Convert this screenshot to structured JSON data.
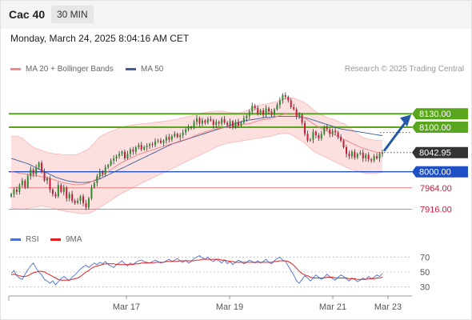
{
  "header": {
    "instrument": "Cac 40",
    "timeframe": "30 MIN"
  },
  "datetime": "Monday, March 24, 2025 8:04:16 AM CET",
  "legend": {
    "items": [
      {
        "label": "MA 20 + Bollinger Bands",
        "color": "#f28b8b"
      },
      {
        "label": "MA 50",
        "color": "#3a5f9a"
      }
    ],
    "credit": "Research © 2025 Trading Central"
  },
  "rsi_legend": {
    "items": [
      {
        "label": "RSI",
        "color": "#4a6fd0"
      },
      {
        "label": "9MA",
        "color": "#e02020"
      }
    ]
  },
  "colors": {
    "up": "#2e8b2e",
    "down": "#c41e3a",
    "resistance": "#5aa51e",
    "pivot": "#1f4fc4",
    "support": "#e08080",
    "arrow": "#2559a8",
    "price_label": "#333333",
    "band_fill": "#fcdcdc",
    "ma20": "#f07f7f",
    "ma50": "#3a5f9a",
    "rsi": "#4a6fd0",
    "rsi_ma": "#e02020"
  },
  "chart_data": {
    "type": "candlestick",
    "ylim": [
      7890,
      8195
    ],
    "x_ticks": [
      "Mar 17",
      "Mar 19",
      "Mar 21",
      "Mar 23"
    ],
    "current_price": "8042.95",
    "levels": [
      {
        "label": "8130.00",
        "value": 8130,
        "kind": "resistance"
      },
      {
        "label": "8100.00",
        "value": 8100,
        "kind": "resistance"
      },
      {
        "label": "8000.00",
        "value": 8000,
        "kind": "pivot"
      },
      {
        "label": "7964.00",
        "value": 7964,
        "kind": "support"
      },
      {
        "label": "7916.00",
        "value": 7916,
        "kind": "support"
      }
    ],
    "forecast_target": 8130,
    "close": [
      7950,
      7960,
      7955,
      7970,
      7980,
      7965,
      7990,
      8005,
      7995,
      8010,
      8020,
      8000,
      7980,
      7985,
      7960,
      7950,
      7945,
      7970,
      7955,
      7965,
      7940,
      7950,
      7935,
      7930,
      7935,
      7945,
      7930,
      7920,
      7940,
      7965,
      7975,
      7990,
      8000,
      7995,
      8010,
      8015,
      8025,
      8030,
      8035,
      8040,
      8045,
      8030,
      8040,
      8050,
      8045,
      8055,
      8060,
      8050,
      8055,
      8058,
      8062,
      8060,
      8068,
      8070,
      8065,
      8070,
      8078,
      8072,
      8080,
      8085,
      8078,
      8082,
      8088,
      8095,
      8100,
      8098,
      8112,
      8120,
      8108,
      8115,
      8110,
      8118,
      8115,
      8105,
      8112,
      8108,
      8118,
      8110,
      8105,
      8113,
      8102,
      8112,
      8104,
      8110,
      8120,
      8125,
      8135,
      8148,
      8143,
      8130,
      8138,
      8128,
      8142,
      8135,
      8128,
      8140,
      8150,
      8160,
      8172,
      8168,
      8160,
      8145,
      8140,
      8125,
      8128,
      8110,
      8085,
      8070,
      8072,
      8090,
      8082,
      8075,
      8085,
      8100,
      8095,
      8085,
      8092,
      8088,
      8078,
      8070,
      8055,
      8040,
      8035,
      8045,
      8032,
      8040,
      8043,
      8030,
      8038,
      8028,
      8025,
      8035,
      8030,
      8040,
      8043
    ],
    "upper_band": [
      8080,
      8080,
      8080,
      8078,
      8075,
      8070,
      8065,
      8060,
      8055,
      8052,
      8050,
      8048,
      8045,
      8044,
      8042,
      8041,
      8040,
      8040,
      8039,
      8038,
      8038,
      8038,
      8038,
      8038,
      8040,
      8042,
      8045,
      8048,
      8052,
      8058,
      8065,
      8072,
      8078,
      8082,
      8085,
      8088,
      8090,
      8093,
      8095,
      8098,
      8100,
      8102,
      8103,
      8104,
      8105,
      8106,
      8107,
      8107,
      8108,
      8108,
      8109,
      8110,
      8111,
      8112,
      8112,
      8113,
      8114,
      8115,
      8116,
      8117,
      8118,
      8120,
      8121,
      8122,
      8124,
      8125,
      8128,
      8130,
      8131,
      8132,
      8133,
      8134,
      8135,
      8135,
      8136,
      8136,
      8136,
      8135,
      8134,
      8133,
      8132,
      8132,
      8132,
      8133,
      8135,
      8137,
      8140,
      8143,
      8146,
      8148,
      8150,
      8151,
      8152,
      8153,
      8155,
      8156,
      8158,
      8160,
      8163,
      8165,
      8166,
      8166,
      8165,
      8163,
      8160,
      8158,
      8155,
      8150,
      8145,
      8140,
      8135,
      8131,
      8128,
      8125,
      8122,
      8120,
      8118,
      8116,
      8113,
      8110,
      8108,
      8105,
      8100,
      8095,
      8090,
      8085,
      8080,
      8077,
      8075,
      8073,
      8072,
      8071,
      8070,
      8070,
      8070
    ],
    "lower_band": [
      7920,
      7918,
      7917,
      7916,
      7916,
      7917,
      7918,
      7919,
      7920,
      7921,
      7922,
      7923,
      7922,
      7921,
      7920,
      7918,
      7917,
      7915,
      7913,
      7912,
      7911,
      7910,
      7909,
      7908,
      7907,
      7906,
      7906,
      7906,
      7907,
      7909,
      7912,
      7916,
      7920,
      7924,
      7928,
      7932,
      7936,
      7940,
      7944,
      7948,
      7952,
      7955,
      7958,
      7961,
      7965,
      7968,
      7971,
      7974,
      7977,
      7980,
      7983,
      7986,
      7989,
      7992,
      7995,
      7998,
      8001,
      8004,
      8007,
      8010,
      8013,
      8016,
      8019,
      8022,
      8025,
      8028,
      8031,
      8034,
      8037,
      8040,
      8043,
      8046,
      8049,
      8052,
      8055,
      8058,
      8060,
      8062,
      8064,
      8065,
      8066,
      8067,
      8068,
      8069,
      8070,
      8071,
      8072,
      8073,
      8074,
      8075,
      8076,
      8077,
      8078,
      8079,
      8080,
      8082,
      8084,
      8085,
      8086,
      8086,
      8085,
      8083,
      8080,
      8076,
      8072,
      8068,
      8064,
      8058,
      8052,
      8047,
      8043,
      8040,
      8037,
      8034,
      8031,
      8028,
      8025,
      8022,
      8019,
      8016,
      8013,
      8010,
      8007,
      8005,
      8003,
      8001,
      7999,
      7998,
      7997,
      7996,
      7996,
      7996,
      7997,
      7998,
      7999
    ],
    "ma20": [
      8000,
      7999,
      7998,
      7997,
      7996,
      7995,
      7994,
      7993,
      7992,
      7991,
      7990,
      7989,
      7988,
      7987,
      7985,
      7983,
      7981,
      7979,
      7977,
      7975,
      7974,
      7973,
      7972,
      7971,
      7971,
      7971,
      7972,
      7973,
      7975,
      7978,
      7981,
      7985,
      7989,
      7993,
      7997,
      8001,
      8005,
      8009,
      8013,
      8017,
      8021,
      8024,
      8027,
      8030,
      8033,
      8036,
      8039,
      8041,
      8043,
      8045,
      8047,
      8049,
      8051,
      8053,
      8055,
      8057,
      8059,
      8061,
      8063,
      8065,
      8067,
      8069,
      8071,
      8073,
      8075,
      8077,
      8080,
      8083,
      8085,
      8087,
      8089,
      8091,
      8093,
      8095,
      8096,
      8097,
      8098,
      8099,
      8100,
      8101,
      8102,
      8103,
      8104,
      8105,
      8106,
      8107,
      8108,
      8110,
      8112,
      8114,
      8116,
      8117,
      8118,
      8119,
      8120,
      8122,
      8124,
      8126,
      8128,
      8130,
      8131,
      8131,
      8130,
      8128,
      8126,
      8123,
      8120,
      8116,
      8112,
      8108,
      8104,
      8100,
      8097,
      8094,
      8091,
      8088,
      8085,
      8082,
      8079,
      8076,
      8073,
      8070,
      8067,
      8064,
      8061,
      8058,
      8055,
      8053,
      8051,
      8049,
      8047,
      8045,
      8044,
      8043,
      8042
    ],
    "ma50": [
      8030,
      8028,
      8026,
      8024,
      8022,
      8020,
      8018,
      8015,
      8012,
      8009,
      8006,
      8003,
      8000,
      7997,
      7994,
      7991,
      7988,
      7986,
      7984,
      7982,
      7980,
      7979,
      7978,
      7977,
      7976,
      7976,
      7976,
      7976,
      7977,
      7978,
      7980,
      7982,
      7984,
      7987,
      7990,
      7993,
      7996,
      7999,
      8002,
      8005,
      8008,
      8011,
      8014,
      8017,
      8020,
      8023,
      8026,
      8029,
      8032,
      8035,
      8038,
      8041,
      8044,
      8047,
      8050,
      8053,
      8056,
      8059,
      8062,
      8064,
      8066,
      8068,
      8070,
      8072,
      8074,
      8076,
      8078,
      8080,
      8082,
      8084,
      8086,
      8088,
      8090,
      8092,
      8094,
      8096,
      8098,
      8100,
      8102,
      8104,
      8106,
      8108,
      8110,
      8112,
      8114,
      8115,
      8116,
      8117,
      8118,
      8119,
      8120,
      8121,
      8122,
      8122,
      8123,
      8123,
      8124,
      8124,
      8124,
      8124,
      8124,
      8124,
      8124,
      8124,
      8123,
      8122,
      8121,
      8120,
      8118,
      8116,
      8114,
      8112,
      8110,
      8108,
      8106,
      8104,
      8102,
      8100,
      8098,
      8096,
      8095,
      8094,
      8093,
      8092,
      8091,
      8090,
      8089,
      8088,
      8087,
      8086,
      8085,
      8084,
      8083,
      8082,
      8081
    ],
    "rsi": {
      "ylim": [
        20,
        80
      ],
      "ticks": [
        70,
        50,
        30
      ],
      "rsi": [
        48,
        52,
        45,
        42,
        40,
        47,
        53,
        58,
        62,
        55,
        50,
        46,
        40,
        38,
        35,
        38,
        33,
        37,
        41,
        44,
        41,
        39,
        43,
        46,
        50,
        54,
        57,
        59,
        56,
        59,
        62,
        60,
        63,
        61,
        64,
        60,
        58,
        56,
        60,
        62,
        65,
        61,
        58,
        62,
        60,
        63,
        65,
        66,
        64,
        63,
        62,
        64,
        66,
        64,
        62,
        63,
        65,
        67,
        64,
        66,
        68,
        65,
        63,
        66,
        62,
        64,
        68,
        70,
        72,
        69,
        67,
        70,
        66,
        64,
        67,
        65,
        62,
        66,
        61,
        64,
        60,
        63,
        66,
        64,
        61,
        63,
        66,
        64,
        62,
        65,
        62,
        64,
        67,
        63,
        61,
        65,
        68,
        70,
        66,
        64,
        58,
        52,
        46,
        38,
        35,
        40,
        45,
        42,
        38,
        42,
        46,
        43,
        40,
        43,
        47,
        44,
        41,
        39,
        43,
        46,
        44,
        41,
        38,
        42,
        40,
        37,
        39,
        42,
        40,
        44,
        41,
        43,
        46,
        44,
        48
      ],
      "ma9": [
        46,
        47,
        46,
        45,
        44,
        44,
        45,
        47,
        49,
        50,
        51,
        51,
        50,
        48,
        46,
        44,
        42,
        40,
        39,
        39,
        39,
        39,
        40,
        41,
        42,
        44,
        47,
        50,
        52,
        55,
        57,
        58,
        59,
        60,
        61,
        61,
        61,
        61,
        60,
        60,
        60,
        60,
        60,
        60,
        60,
        61,
        61,
        62,
        62,
        62,
        62,
        62,
        63,
        63,
        63,
        63,
        64,
        64,
        64,
        64,
        64,
        65,
        65,
        65,
        65,
        65,
        65,
        66,
        66,
        67,
        67,
        67,
        67,
        67,
        67,
        67,
        66,
        66,
        65,
        64,
        64,
        63,
        63,
        63,
        63,
        63,
        63,
        63,
        63,
        63,
        63,
        63,
        63,
        63,
        63,
        64,
        64,
        65,
        65,
        65,
        64,
        62,
        59,
        55,
        51,
        48,
        46,
        45,
        43,
        42,
        42,
        42,
        42,
        42,
        43,
        43,
        43,
        42,
        42,
        42,
        42,
        42,
        41,
        41,
        41,
        40,
        40,
        40,
        40,
        41,
        41,
        41,
        42,
        42,
        43
      ]
    }
  }
}
